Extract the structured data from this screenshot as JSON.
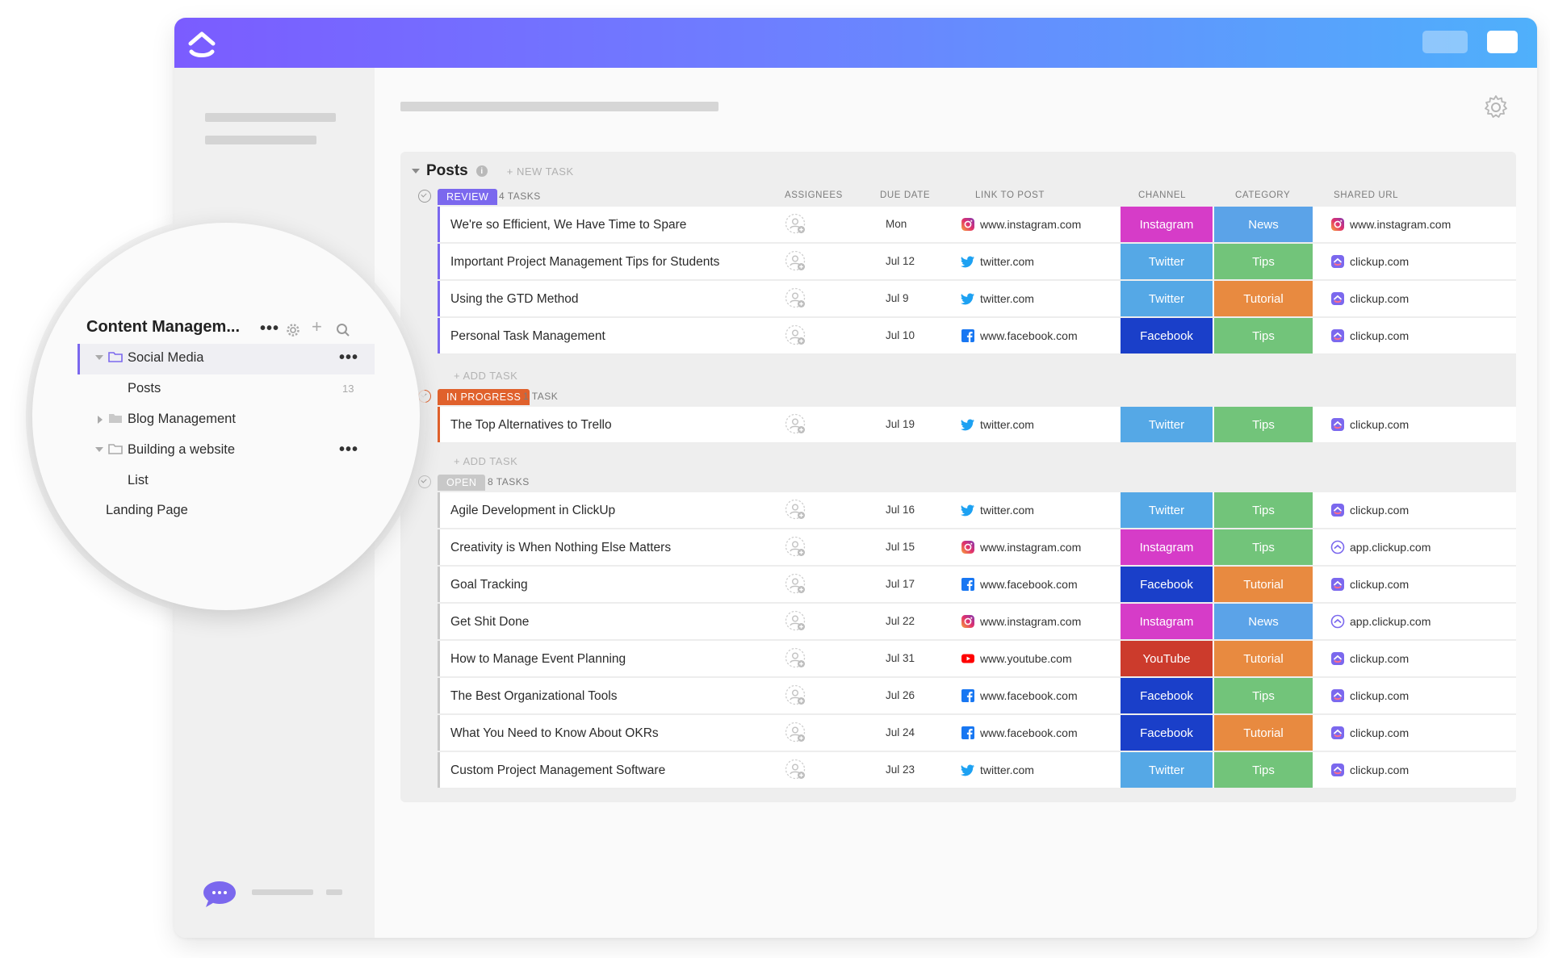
{
  "space": {
    "title": "Content Managem...",
    "items": [
      {
        "label": "Social Media"
      },
      {
        "label": "Posts",
        "count": "13"
      },
      {
        "label": "Blog Management"
      },
      {
        "label": "Building a website"
      },
      {
        "label": "List"
      },
      {
        "label": "Landing Page"
      }
    ]
  },
  "list": {
    "title": "Posts",
    "new_task": "+ NEW TASK",
    "add_task": "+ ADD TASK",
    "columns": {
      "assignees": "ASSIGNEES",
      "due_date": "DUE DATE",
      "link": "LINK TO POST",
      "channel": "CHANNEL",
      "category": "CATEGORY",
      "shared_url": "SHARED URL"
    },
    "groups": [
      {
        "status": "REVIEW",
        "color": "#7b68ee",
        "count": "4 TASKS",
        "tasks": [
          {
            "name": "We're so Efficient, We Have Time to Spare",
            "due": "Mon",
            "link": "www.instagram.com",
            "link_icon": "instagram-icon",
            "channel": "Instagram",
            "channel_color": "#d63cc8",
            "category": "News",
            "category_color": "#5ba3e8",
            "shared": "www.instagram.com",
            "shared_icon": "instagram-icon"
          },
          {
            "name": "Important Project Management Tips for Students",
            "due": "Jul 12",
            "link": "twitter.com",
            "link_icon": "twitter-icon",
            "channel": "Twitter",
            "channel_color": "#55a8e6",
            "category": "Tips",
            "category_color": "#72c47a",
            "shared": "clickup.com",
            "shared_icon": "clickup-icon"
          },
          {
            "name": "Using the GTD Method",
            "due": "Jul 9",
            "link": "twitter.com",
            "link_icon": "twitter-icon",
            "channel": "Twitter",
            "channel_color": "#55a8e6",
            "category": "Tutorial",
            "category_color": "#e88a40",
            "shared": "clickup.com",
            "shared_icon": "clickup-icon"
          },
          {
            "name": "Personal Task Management",
            "due": "Jul 10",
            "link": "www.facebook.com",
            "link_icon": "facebook-icon",
            "channel": "Facebook",
            "channel_color": "#1a3fc9",
            "category": "Tips",
            "category_color": "#72c47a",
            "shared": "clickup.com",
            "shared_icon": "clickup-icon"
          }
        ]
      },
      {
        "status": "IN PROGRESS",
        "color": "#e0612c",
        "count": "1 TASK",
        "tasks": [
          {
            "name": "The Top Alternatives to Trello",
            "due": "Jul 19",
            "link": "twitter.com",
            "link_icon": "twitter-icon",
            "channel": "Twitter",
            "channel_color": "#55a8e6",
            "category": "Tips",
            "category_color": "#72c47a",
            "shared": "clickup.com",
            "shared_icon": "clickup-icon"
          }
        ]
      },
      {
        "status": "OPEN",
        "color": "#c8c8c8",
        "count": "8 TASKS",
        "tasks": [
          {
            "name": "Agile Development in ClickUp",
            "due": "Jul 16",
            "link": "twitter.com",
            "link_icon": "twitter-icon",
            "channel": "Twitter",
            "channel_color": "#55a8e6",
            "category": "Tips",
            "category_color": "#72c47a",
            "shared": "clickup.com",
            "shared_icon": "clickup-icon"
          },
          {
            "name": "Creativity is When Nothing Else Matters",
            "due": "Jul 15",
            "link": "www.instagram.com",
            "link_icon": "instagram-icon",
            "channel": "Instagram",
            "channel_color": "#d63cc8",
            "category": "Tips",
            "category_color": "#72c47a",
            "shared": "app.clickup.com",
            "shared_icon": "app-clickup-icon"
          },
          {
            "name": "Goal Tracking",
            "due": "Jul 17",
            "link": "www.facebook.com",
            "link_icon": "facebook-icon",
            "channel": "Facebook",
            "channel_color": "#1a3fc9",
            "category": "Tutorial",
            "category_color": "#e88a40",
            "shared": "clickup.com",
            "shared_icon": "clickup-icon"
          },
          {
            "name": "Get Shit Done",
            "due": "Jul 22",
            "link": "www.instagram.com",
            "link_icon": "instagram-icon",
            "channel": "Instagram",
            "channel_color": "#d63cc8",
            "category": "News",
            "category_color": "#5ba3e8",
            "shared": "app.clickup.com",
            "shared_icon": "app-clickup-icon"
          },
          {
            "name": "How to Manage Event Planning",
            "due": "Jul 31",
            "link": "www.youtube.com",
            "link_icon": "youtube-icon",
            "channel": "YouTube",
            "channel_color": "#cc3b2c",
            "category": "Tutorial",
            "category_color": "#e88a40",
            "shared": "clickup.com",
            "shared_icon": "clickup-icon"
          },
          {
            "name": "The Best Organizational Tools",
            "due": "Jul 26",
            "link": "www.facebook.com",
            "link_icon": "facebook-icon",
            "channel": "Facebook",
            "channel_color": "#1a3fc9",
            "category": "Tips",
            "category_color": "#72c47a",
            "shared": "clickup.com",
            "shared_icon": "clickup-icon"
          },
          {
            "name": "What You Need to Know About OKRs",
            "due": "Jul 24",
            "link": "www.facebook.com",
            "link_icon": "facebook-icon",
            "channel": "Facebook",
            "channel_color": "#1a3fc9",
            "category": "Tutorial",
            "category_color": "#e88a40",
            "shared": "clickup.com",
            "shared_icon": "clickup-icon"
          },
          {
            "name": "Custom Project Management Software",
            "due": "Jul 23",
            "link": "twitter.com",
            "link_icon": "twitter-icon",
            "channel": "Twitter",
            "channel_color": "#55a8e6",
            "category": "Tips",
            "category_color": "#72c47a",
            "shared": "clickup.com",
            "shared_icon": "clickup-icon"
          }
        ]
      }
    ]
  }
}
